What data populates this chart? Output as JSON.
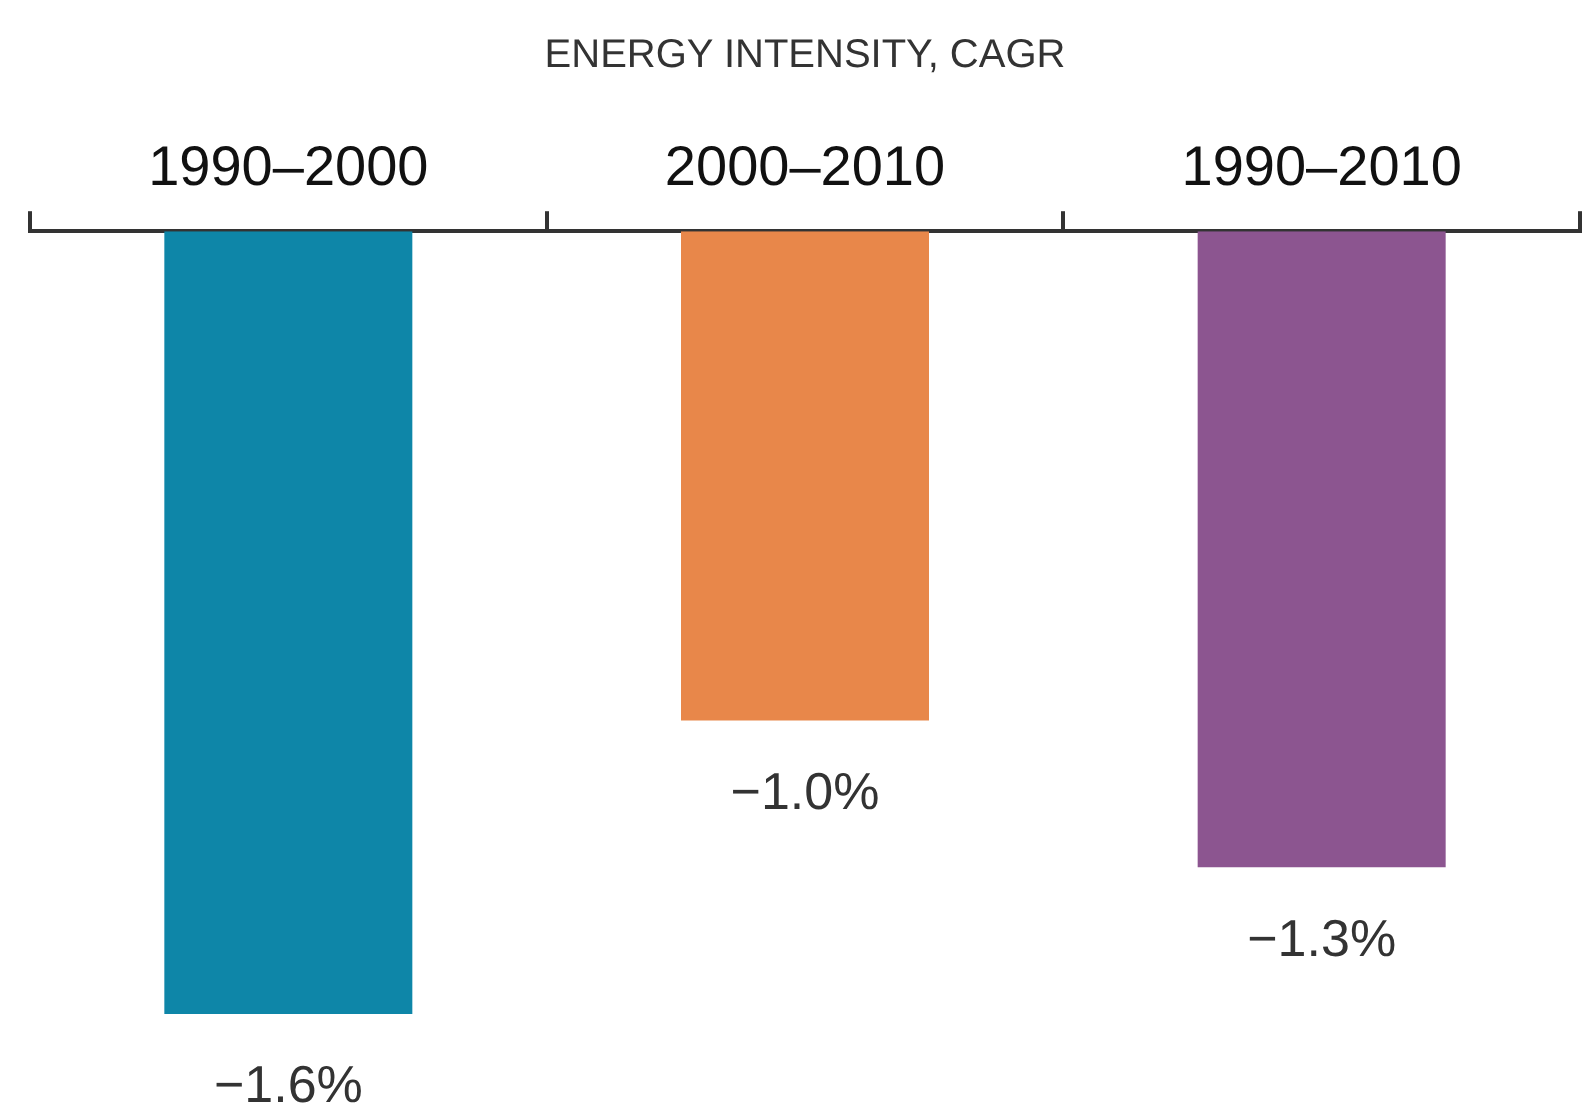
{
  "chart_data": {
    "type": "bar",
    "title": "ENERGY INTENSITY, CAGR",
    "categories": [
      "1990–2000",
      "2000–2010",
      "1990–2010"
    ],
    "values": [
      -1.6,
      -1.0,
      -1.3
    ],
    "colors": [
      "#0e86a8",
      "#e8874a",
      "#8c5590"
    ],
    "value_labels": [
      "−1.6%",
      "−1.0%",
      "−1.3%"
    ],
    "grid": false,
    "legend": false,
    "tick_labels": "x"
  }
}
